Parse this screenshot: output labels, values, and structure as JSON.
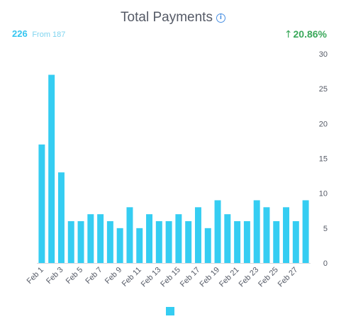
{
  "header": {
    "title": "Total Payments",
    "info_icon": "info-icon",
    "current_value": "226",
    "from_text": "From 187",
    "change": "20.86%",
    "change_icon": "arrow-up-icon"
  },
  "colors": {
    "bar": "#35cdf2",
    "title": "#555a66",
    "current_value": "#35c6f0",
    "positive_change": "#3aa85a",
    "info_icon": "#4a90e2"
  },
  "chart_data": {
    "type": "bar",
    "categories": [
      "Feb 1",
      "Feb 2",
      "Feb 3",
      "Feb 4",
      "Feb 5",
      "Feb 6",
      "Feb 7",
      "Feb 8",
      "Feb 9",
      "Feb 10",
      "Feb 11",
      "Feb 12",
      "Feb 13",
      "Feb 14",
      "Feb 15",
      "Feb 16",
      "Feb 17",
      "Feb 18",
      "Feb 19",
      "Feb 20",
      "Feb 21",
      "Feb 22",
      "Feb 23",
      "Feb 24",
      "Feb 25",
      "Feb 26",
      "Feb 27",
      "Feb 28"
    ],
    "x_tick_labels": [
      "Feb 1",
      "Feb 3",
      "Feb 5",
      "Feb 7",
      "Feb 9",
      "Feb 11",
      "Feb 13",
      "Feb 15",
      "Feb 17",
      "Feb 19",
      "Feb 21",
      "Feb 23",
      "Feb 25",
      "Feb 27"
    ],
    "values": [
      17,
      27,
      13,
      6,
      6,
      7,
      7,
      6,
      5,
      8,
      5,
      7,
      6,
      6,
      7,
      6,
      8,
      5,
      9,
      7,
      6,
      6,
      9,
      8,
      6,
      8,
      6,
      9
    ],
    "ylim": [
      0,
      30
    ],
    "y_ticks": [
      0,
      5,
      10,
      15,
      20,
      25,
      30
    ],
    "y_axis_side": "right",
    "grid": false,
    "legend": "bottom"
  }
}
